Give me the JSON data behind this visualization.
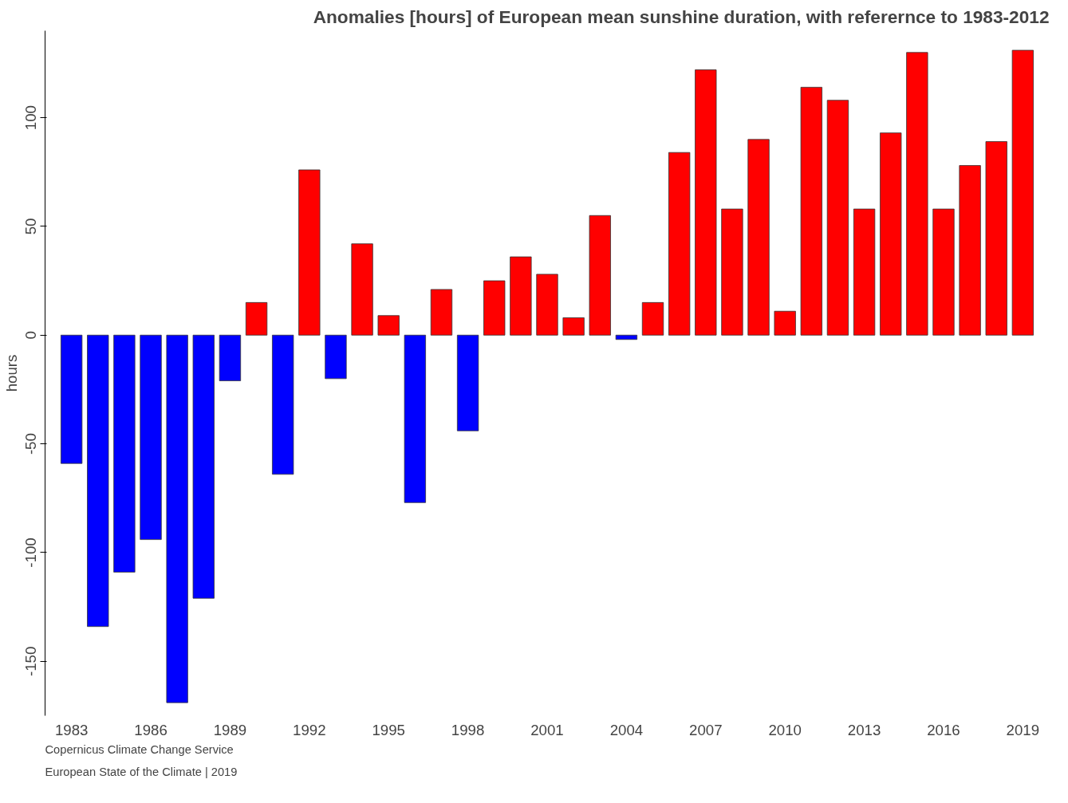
{
  "chart_data": {
    "type": "bar",
    "title": "Anomalies [hours] of European mean sunshine duration, with referernce to 1983-2012",
    "ylabel": "hours",
    "categories": [
      "1983",
      null,
      null,
      "1986",
      null,
      null,
      "1989",
      null,
      null,
      "1992",
      null,
      null,
      "1995",
      null,
      null,
      "1998",
      null,
      null,
      "2001",
      null,
      null,
      "2004",
      null,
      null,
      "2007",
      null,
      null,
      "2010",
      null,
      null,
      "2013",
      null,
      null,
      "2016",
      null,
      null,
      "2019"
    ],
    "values": [
      -59,
      -134,
      -109,
      -94,
      -169,
      -121,
      -21,
      15,
      -64,
      76,
      -20,
      42,
      9,
      -77,
      21,
      -44,
      25,
      36,
      28,
      8,
      55,
      -2,
      15,
      84,
      122,
      58,
      90,
      11,
      114,
      108,
      58,
      93,
      130,
      58,
      78,
      89,
      131
    ],
    "colors": [
      "#0000ff",
      "#0000ff",
      "#0000ff",
      "#0000ff",
      "#0000ff",
      "#0000ff",
      "#0000ff",
      "#ff0000",
      "#0000ff",
      "#ff0000",
      "#0000ff",
      "#ff0000",
      "#ff0000",
      "#0000ff",
      "#ff0000",
      "#0000ff",
      "#ff0000",
      "#ff0000",
      "#ff0000",
      "#ff0000",
      "#ff0000",
      "#0000ff",
      "#ff0000",
      "#ff0000",
      "#ff0000",
      "#ff0000",
      "#ff0000",
      "#ff0000",
      "#ff0000",
      "#ff0000",
      "#ff0000",
      "#ff0000",
      "#ff0000",
      "#ff0000",
      "#ff0000",
      "#ff0000",
      "#ff0000"
    ],
    "ylim": [
      -175,
      140
    ],
    "yticks": [
      -150,
      -100,
      -50,
      0,
      50,
      100
    ],
    "grid": false,
    "annotations": [
      "Copernicus Climate Change Service",
      "European State of the Climate | 2019"
    ]
  }
}
